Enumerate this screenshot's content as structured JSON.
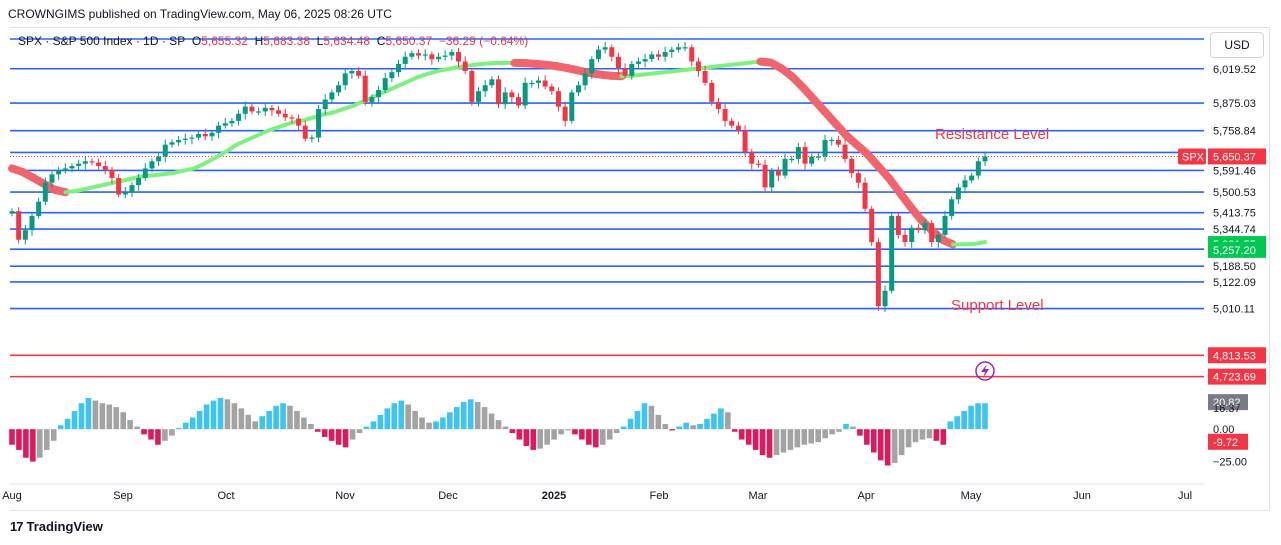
{
  "header": {
    "publisher": "CROWNGIMS published on TradingView.com, May 06, 2025 08:26 UTC"
  },
  "legend": {
    "symbol": "SPX · S&P 500 Index · 1D · SP",
    "o_label": "O",
    "o": "5,655.32",
    "h_label": "H",
    "h": "5,683.38",
    "l_label": "L",
    "l": "5,634.48",
    "c_label": "C",
    "c": "5,650.37",
    "change": "−36.29 (−0.64%)"
  },
  "currency": "USD",
  "footer": {
    "brand": "TradingView",
    "logo": "17"
  },
  "colors": {
    "level_line": "#2962ff",
    "red_line": "#f23645",
    "up": "#089981",
    "down": "#f23645",
    "ma_up": "#7ef07e",
    "ma_down": "#f0646e",
    "hist_blue": "#3ec4f0",
    "hist_gray": "#a3a3a3",
    "hist_red": "#e0185e"
  },
  "chart_data": {
    "type": "candlestick",
    "symbol": "SPX",
    "timeframe": "1D",
    "ylim": [
      4680,
      6170
    ],
    "x_ticks": [
      "Aug",
      "Sep",
      "Oct",
      "Nov",
      "Dec",
      "2025",
      "Feb",
      "Mar",
      "Apr",
      "May",
      "Jun",
      "Jul"
    ],
    "levels": [
      {
        "value": 6144.72,
        "label": "6,144.72",
        "style": "blue"
      },
      {
        "value": 6019.52,
        "label": "6,019.52",
        "style": "blue"
      },
      {
        "value": 5875.03,
        "label": "5,875.03",
        "style": "blue"
      },
      {
        "value": 5758.84,
        "label": "5,758.84",
        "style": "blue"
      },
      {
        "value": 5667.48,
        "label": "5,667.48",
        "style": "blue"
      },
      {
        "value": 5591.46,
        "label": "5,591.46",
        "style": "blue"
      },
      {
        "value": 5500.53,
        "label": "5,500.53",
        "style": "blue"
      },
      {
        "value": 5413.75,
        "label": "5,413.75",
        "style": "blue"
      },
      {
        "value": 5344.74,
        "label": "5,344.74",
        "style": "blue"
      },
      {
        "value": 5260.11,
        "label": "5,260.11",
        "style": "blue"
      },
      {
        "value": 5188.5,
        "label": "5,188.50",
        "style": "blue"
      },
      {
        "value": 5122.09,
        "label": "5,122.09",
        "style": "blue"
      },
      {
        "value": 5010.11,
        "label": "5,010.11",
        "style": "blue"
      },
      {
        "value": 4813.53,
        "label": "4,813.53",
        "style": "red"
      },
      {
        "value": 4723.69,
        "label": "4,723.69",
        "style": "red"
      }
    ],
    "badges": [
      {
        "value": 5650.37,
        "label": "5,650.37",
        "tag": "SPX",
        "color": "#f23645"
      },
      {
        "value": 5281.55,
        "label": "5,281.55",
        "color": "#00c853"
      },
      {
        "value": 5257.2,
        "label": "5,257.20",
        "color": "#00c853"
      }
    ],
    "annotations": [
      {
        "text": "Resistance Level",
        "color": "#f23645"
      },
      {
        "text": "Support Level",
        "color": "#f23645"
      }
    ],
    "close_path": [
      5420,
      5300,
      5340,
      5400,
      5460,
      5540,
      5575,
      5590,
      5600,
      5610,
      5620,
      5630,
      5625,
      5610,
      5595,
      5560,
      5490,
      5500,
      5530,
      5560,
      5600,
      5630,
      5650,
      5700,
      5710,
      5720,
      5725,
      5730,
      5745,
      5735,
      5750,
      5780,
      5790,
      5800,
      5830,
      5860,
      5840,
      5840,
      5855,
      5845,
      5830,
      5815,
      5810,
      5780,
      5725,
      5730,
      5850,
      5890,
      5920,
      5950,
      6000,
      6010,
      5990,
      5880,
      5900,
      5930,
      5980,
      6005,
      6040,
      6070,
      6085,
      6075,
      6080,
      6060,
      6070,
      6075,
      6090,
      6050,
      6010,
      5880,
      5925,
      5950,
      5975,
      5870,
      5920,
      5900,
      5865,
      5960,
      5960,
      5970,
      5945,
      5925,
      5860,
      5800,
      5920,
      5950,
      6000,
      6060,
      6100,
      6110,
      6070,
      6020,
      5990,
      6040,
      6050,
      6060,
      6080,
      6070,
      6090,
      6100,
      6110,
      6110,
      6050,
      6010,
      5960,
      5880,
      5850,
      5800,
      5780,
      5760,
      5670,
      5620,
      5615,
      5520,
      5590,
      5570,
      5640,
      5640,
      5690,
      5620,
      5650,
      5650,
      5720,
      5720,
      5700,
      5640,
      5580,
      5540,
      5430,
      5290,
      5020,
      5085,
      5400,
      5320,
      5290,
      5350,
      5340,
      5370,
      5290,
      5320,
      5400,
      5470,
      5520,
      5550,
      5570,
      5630,
      5650
    ],
    "ma_path": [
      5600,
      5585,
      5560,
      5535,
      5510,
      5500,
      5505,
      5515,
      5525,
      5535,
      5545,
      5555,
      5565,
      5570,
      5575,
      5580,
      5590,
      5600,
      5620,
      5645,
      5670,
      5700,
      5720,
      5740,
      5760,
      5775,
      5790,
      5800,
      5812,
      5825,
      5835,
      5850,
      5865,
      5885,
      5905,
      5925,
      5945,
      5965,
      5985,
      6000,
      6012,
      6020,
      6028,
      6035,
      6040,
      6043,
      6044,
      6044,
      6043,
      6040,
      6036,
      6030,
      6022,
      6012,
      6002,
      5995,
      5990,
      5988,
      5990,
      5995,
      6000,
      6005,
      6010,
      6015,
      6020,
      6025,
      6030,
      6035,
      6040,
      6045,
      6050,
      6045,
      6020,
      5985,
      5940,
      5890,
      5840,
      5790,
      5740,
      5700,
      5660,
      5610,
      5560,
      5500,
      5440,
      5385,
      5340,
      5300,
      5280,
      5281,
      5282,
      5290
    ],
    "oscillator": {
      "ticks": [
        {
          "value": 20.82,
          "label": "20.82",
          "badge": "#787b86"
        },
        {
          "value": 16.37,
          "label": "16.37"
        },
        {
          "value": 0.0,
          "label": "0.00"
        },
        {
          "value": -9.72,
          "label": "-9.72",
          "badge": "#f23645"
        },
        {
          "value": -25.0,
          "label": "−25.00"
        }
      ],
      "ylim": [
        -33,
        24
      ],
      "values": [
        -12,
        -16,
        -22,
        -25,
        -22,
        -16,
        -9,
        3,
        8,
        14,
        20,
        24,
        22,
        20,
        19,
        17,
        13,
        7,
        2,
        -4,
        -8,
        -12,
        -9,
        -5,
        1,
        5,
        9,
        14,
        19,
        22,
        24,
        23,
        20,
        16,
        11,
        6,
        10,
        14,
        18,
        20,
        18,
        14,
        9,
        4,
        -2,
        -6,
        -9,
        -12,
        -14,
        -8,
        -3,
        2,
        6,
        11,
        16,
        20,
        22,
        19,
        14,
        9,
        5,
        6,
        9,
        13,
        17,
        21,
        23,
        21,
        17,
        12,
        7,
        2,
        -3,
        -8,
        -13,
        -16,
        -15,
        -12,
        -8,
        -4,
        -1,
        -4,
        -8,
        -12,
        -14,
        -12,
        -8,
        -3,
        2,
        8,
        14,
        20,
        18,
        11,
        4,
        -1,
        2,
        5,
        3,
        4,
        8,
        12,
        16,
        13,
        -2,
        -8,
        -12,
        -16,
        -20,
        -22,
        -20,
        -18,
        -16,
        -14,
        -12,
        -11,
        -10,
        -7,
        -4,
        -2,
        4,
        2,
        -5,
        -12,
        -18,
        -24,
        -28,
        -26,
        -20,
        -14,
        -10,
        -8,
        -7,
        -9,
        -12,
        6,
        10,
        14,
        18,
        20,
        20
      ]
    }
  }
}
